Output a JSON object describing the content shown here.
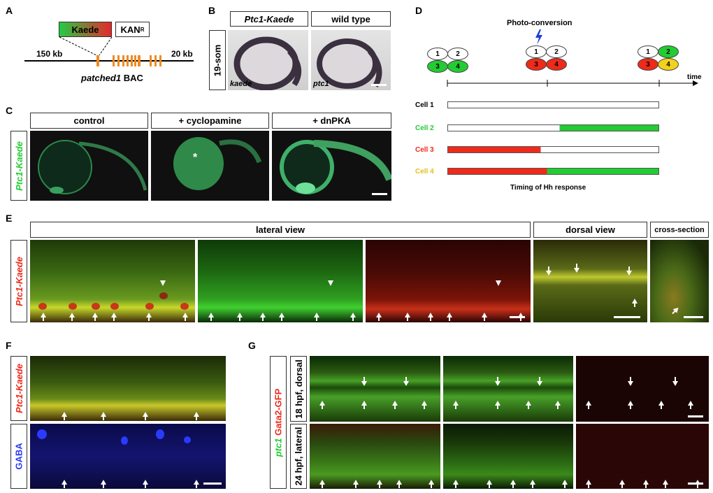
{
  "panels": {
    "A": {
      "label": "A",
      "kaede": "Kaede",
      "kan": "KAN",
      "kan_sup": "R",
      "left_kb": "150 kb",
      "right_kb": "20 kb",
      "bac": "patched1",
      "bac_suffix": " BAC"
    },
    "B": {
      "label": "B",
      "col1": "Ptc1-Kaede",
      "col2": "wild type",
      "row": "19-som",
      "img1_label": "kaede",
      "img2_label": "ptc1"
    },
    "C": {
      "label": "C",
      "col1": "control",
      "col2": "+ cyclopamine",
      "col3": "+ dnPKA",
      "row": "Ptc1-Kaede",
      "asterisk": "*"
    },
    "D": {
      "label": "D",
      "photo": "Photo-conversion",
      "time": "time",
      "cells": [
        "Cell 1",
        "Cell 2",
        "Cell 3",
        "Cell 4"
      ],
      "nums": [
        "1",
        "2",
        "3",
        "4"
      ],
      "caption": "Timing of Hh response",
      "colors": {
        "green": "#22cc33",
        "red": "#ee2a1a",
        "yellow": "#f2d21a"
      }
    },
    "E": {
      "label": "E",
      "lateral": "lateral view",
      "dorsal": "dorsal view",
      "cross": "cross-section",
      "row": "Ptc1-Kaede"
    },
    "F": {
      "label": "F",
      "row1": "Ptc1-Kaede",
      "row2": "GABA"
    },
    "G": {
      "label": "G",
      "side_ptc": "ptc1",
      "side_gata": " Gata2-GFP",
      "row1": "18 hpf, dorsal",
      "row2": "24 hpf, lateral"
    }
  }
}
